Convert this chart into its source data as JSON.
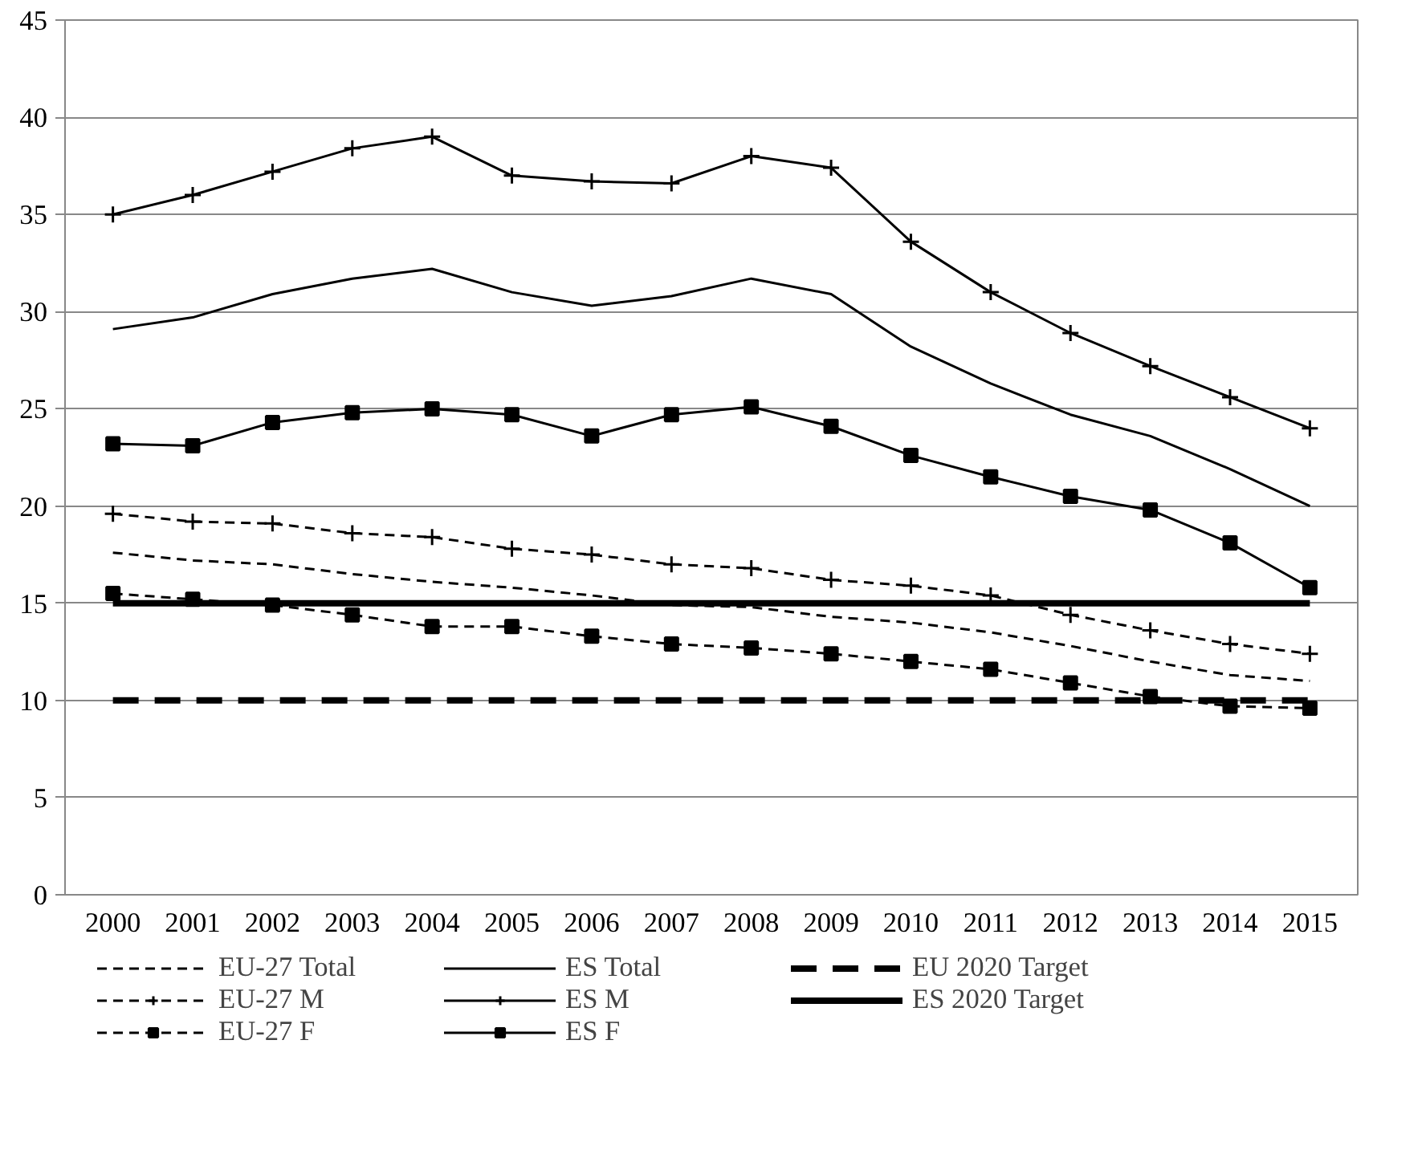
{
  "chart_data": {
    "type": "line",
    "categories": [
      "2000",
      "2001",
      "2002",
      "2003",
      "2004",
      "2005",
      "2006",
      "2007",
      "2008",
      "2009",
      "2010",
      "2011",
      "2012",
      "2013",
      "2014",
      "2015"
    ],
    "series": [
      {
        "name": "EU-27 Total",
        "color": "#000000",
        "line_style": "dashed",
        "marker": "none",
        "values": [
          17.6,
          17.2,
          17.0,
          16.5,
          16.1,
          15.8,
          15.4,
          14.9,
          14.8,
          14.3,
          14.0,
          13.5,
          12.8,
          12.0,
          11.3,
          11.0
        ]
      },
      {
        "name": "EU-27 M",
        "color": "#000000",
        "line_style": "dashed",
        "marker": "cross",
        "values": [
          19.6,
          19.2,
          19.1,
          18.6,
          18.4,
          17.8,
          17.5,
          17.0,
          16.8,
          16.2,
          15.9,
          15.4,
          14.4,
          13.6,
          12.9,
          12.4
        ]
      },
      {
        "name": "EU-27 F",
        "color": "#000000",
        "line_style": "dashed",
        "marker": "square",
        "values": [
          15.5,
          15.2,
          14.9,
          14.4,
          13.8,
          13.8,
          13.3,
          12.9,
          12.7,
          12.4,
          12.0,
          11.6,
          10.9,
          10.2,
          9.7,
          9.6
        ]
      },
      {
        "name": "ES Total",
        "color": "#000000",
        "line_style": "solid",
        "marker": "none",
        "values": [
          29.1,
          29.7,
          30.9,
          31.7,
          32.2,
          31.0,
          30.3,
          30.8,
          31.7,
          30.9,
          28.2,
          26.3,
          24.7,
          23.6,
          21.9,
          20.0
        ]
      },
      {
        "name": "ES M",
        "color": "#000000",
        "line_style": "solid",
        "marker": "cross",
        "values": [
          35.0,
          36.0,
          37.2,
          38.4,
          39.0,
          37.0,
          36.7,
          36.6,
          38.0,
          37.4,
          33.6,
          31.0,
          28.9,
          27.2,
          25.6,
          24.0
        ]
      },
      {
        "name": "ES F",
        "color": "#000000",
        "line_style": "solid",
        "marker": "square",
        "values": [
          23.2,
          23.1,
          24.3,
          24.8,
          25.0,
          24.7,
          23.6,
          24.7,
          25.1,
          24.1,
          22.6,
          21.5,
          20.5,
          19.8,
          18.1,
          15.8
        ]
      }
    ],
    "ref_lines": [
      {
        "axis": "y",
        "value": 10,
        "label": "EU 2020 Target",
        "color": "#000000",
        "line_style": "dashed"
      },
      {
        "axis": "y",
        "value": 15,
        "label": "ES 2020 Target",
        "color": "#000000",
        "line_style": "solid"
      }
    ],
    "ylim": [
      0,
      45
    ],
    "yticks": [
      0,
      5,
      10,
      15,
      20,
      25,
      30,
      35,
      40,
      45
    ],
    "grid": "y",
    "legend": "bottom"
  }
}
